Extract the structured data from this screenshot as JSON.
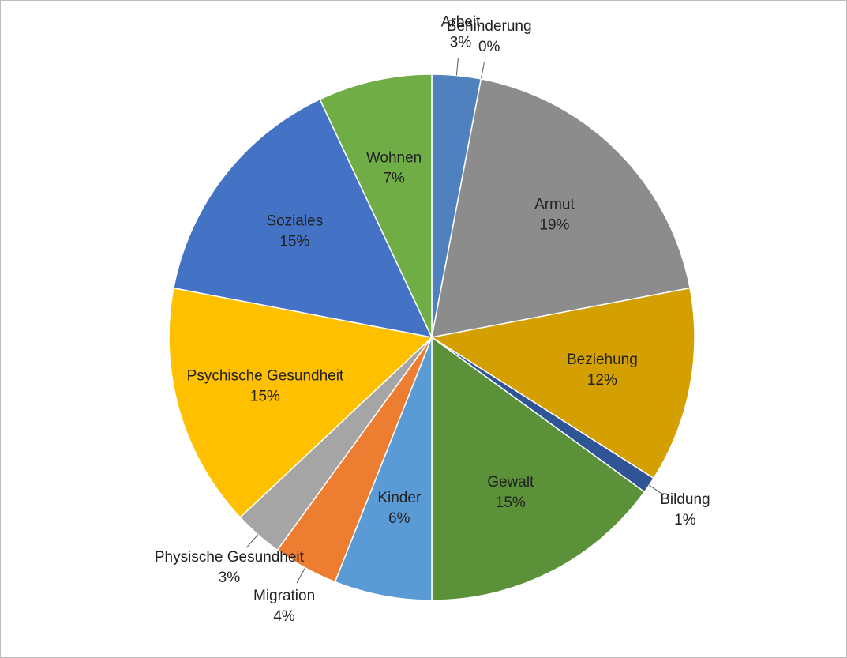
{
  "chart_data": {
    "type": "pie",
    "categories": [
      "Arbeit",
      "Behinderung",
      "Armut",
      "Beziehung",
      "Bildung",
      "Gewalt",
      "Kinder",
      "Migration",
      "Physische Gesundheit",
      "Psychische Gesundheit",
      "Soziales",
      "Wohnen"
    ],
    "values": [
      3,
      0,
      19,
      12,
      1,
      15,
      6,
      4,
      3,
      15,
      15,
      7
    ],
    "value_labels": [
      "3%",
      "0%",
      "19%",
      "12%",
      "1%",
      "15%",
      "6%",
      "4%",
      "3%",
      "15%",
      "15%",
      "7%"
    ],
    "colors": [
      "#4e81bd",
      "#ed7d31",
      "#8c8c8c",
      "#d49f00",
      "#2f5597",
      "#5b9239",
      "#5b9bd5",
      "#ed7d31",
      "#a5a5a5",
      "#ffc000",
      "#4472c4",
      "#70ad47"
    ]
  }
}
